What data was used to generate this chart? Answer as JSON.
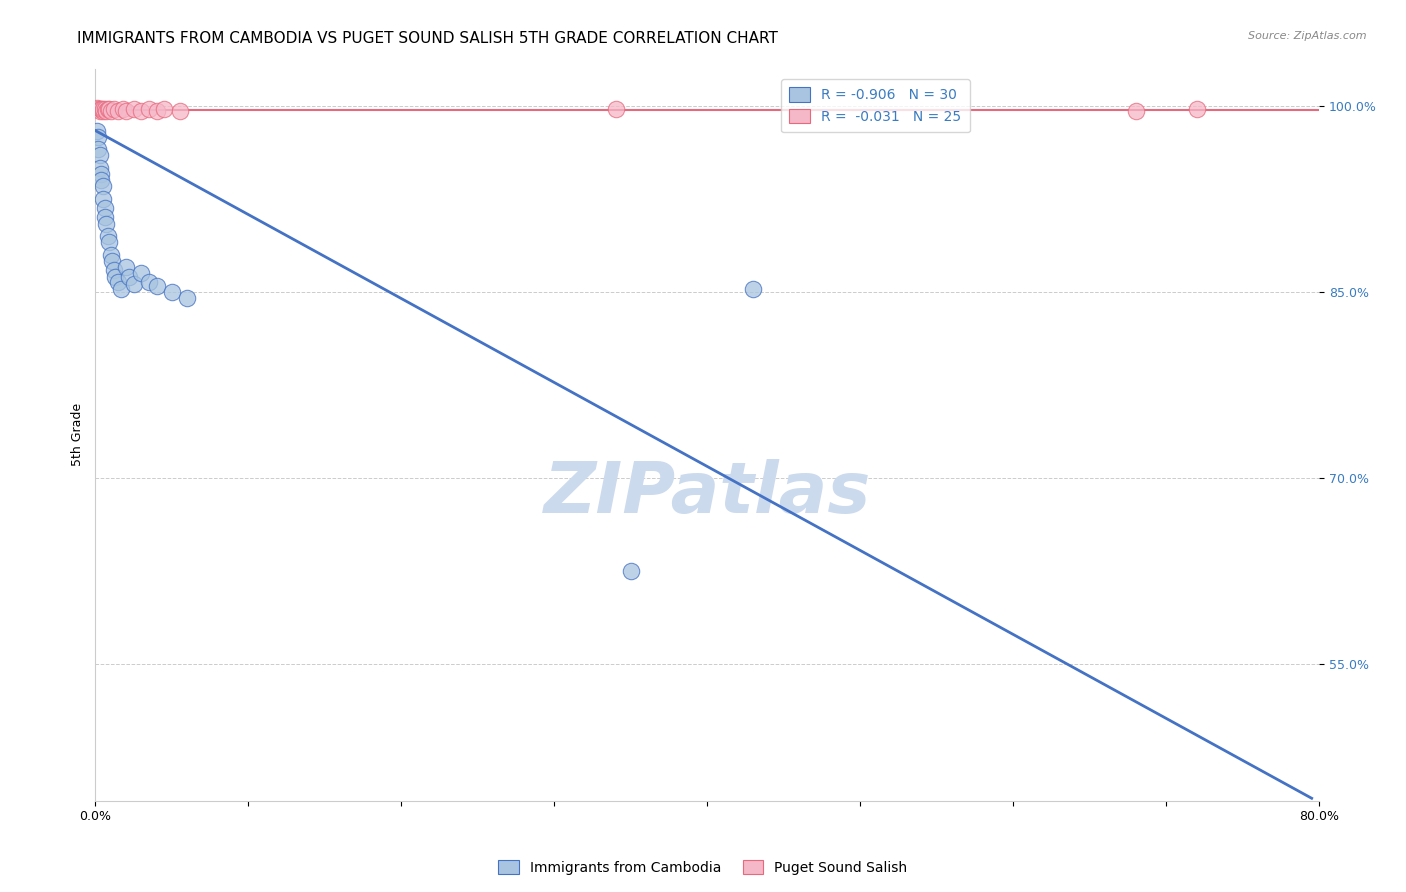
{
  "title": "IMMIGRANTS FROM CAMBODIA VS PUGET SOUND SALISH 5TH GRADE CORRELATION CHART",
  "source": "Source: ZipAtlas.com",
  "ylabel": "5th Grade",
  "xlim": [
    0.0,
    0.8
  ],
  "ylim": [
    0.44,
    1.03
  ],
  "yticks": [
    0.55,
    0.7,
    0.85,
    1.0
  ],
  "ytick_labels": [
    "55.0%",
    "70.0%",
    "85.0%",
    "100.0%"
  ],
  "watermark": "ZIPatlas",
  "legend_r_blue": "R = -0.906",
  "legend_n_blue": "N = 30",
  "legend_r_pink": "R = -0.031",
  "legend_n_pink": "N = 25",
  "blue_scatter_x": [
    0.001,
    0.002,
    0.002,
    0.003,
    0.003,
    0.004,
    0.004,
    0.005,
    0.005,
    0.006,
    0.006,
    0.007,
    0.008,
    0.009,
    0.01,
    0.011,
    0.012,
    0.013,
    0.015,
    0.017,
    0.02,
    0.022,
    0.025,
    0.03,
    0.035,
    0.04,
    0.05,
    0.06,
    0.35,
    0.43
  ],
  "blue_scatter_y": [
    0.98,
    0.975,
    0.965,
    0.96,
    0.95,
    0.945,
    0.94,
    0.935,
    0.925,
    0.918,
    0.91,
    0.905,
    0.895,
    0.89,
    0.88,
    0.875,
    0.868,
    0.862,
    0.858,
    0.852,
    0.87,
    0.862,
    0.856,
    0.865,
    0.858,
    0.855,
    0.85,
    0.845,
    0.625,
    0.852
  ],
  "pink_scatter_x": [
    0.001,
    0.002,
    0.003,
    0.004,
    0.004,
    0.005,
    0.005,
    0.006,
    0.007,
    0.008,
    0.009,
    0.01,
    0.012,
    0.015,
    0.018,
    0.02,
    0.025,
    0.03,
    0.035,
    0.04,
    0.045,
    0.055,
    0.34,
    0.68,
    0.72
  ],
  "pink_scatter_y": [
    0.998,
    0.997,
    0.996,
    0.997,
    0.997,
    0.996,
    0.997,
    0.997,
    0.996,
    0.997,
    0.997,
    0.996,
    0.997,
    0.996,
    0.997,
    0.996,
    0.997,
    0.996,
    0.997,
    0.996,
    0.997,
    0.996,
    0.997,
    0.996,
    0.997
  ],
  "blue_line_x": [
    0.0,
    0.795
  ],
  "blue_line_y": [
    0.98,
    0.442
  ],
  "pink_line_y": 0.9965,
  "blue_color": "#4472c4",
  "pink_color": "#e8697d",
  "blue_scatter_color": "#a8c4e0",
  "pink_scatter_color": "#f5b8c8",
  "grid_color": "#cccccc",
  "title_fontsize": 11,
  "axis_label_fontsize": 9,
  "tick_fontsize": 9,
  "watermark_fontsize": 52,
  "watermark_color": "#ccdaee",
  "xticks": [
    0.0,
    0.1,
    0.2,
    0.3,
    0.4,
    0.5,
    0.6,
    0.7,
    0.8
  ],
  "xtick_labels": [
    "0.0%",
    "",
    "",
    "",
    "",
    "",
    "",
    "",
    "80.0%"
  ]
}
